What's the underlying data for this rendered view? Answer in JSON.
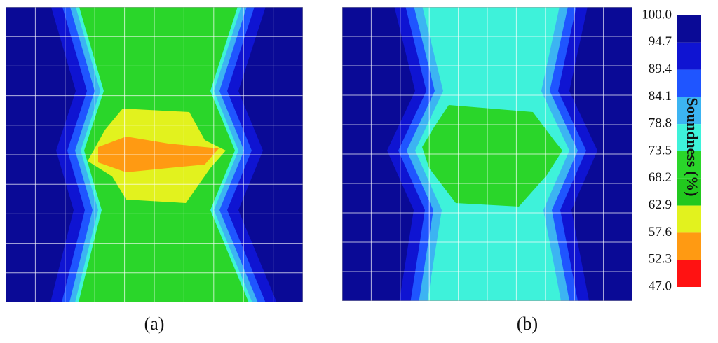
{
  "chart_data": {
    "type": "contour",
    "colorbar": {
      "label": "Soundness (%)",
      "ticks": [
        {
          "value": 100,
          "label": "100.0"
        },
        94.7,
        89.4,
        84.1,
        78.8,
        73.5,
        68.2,
        62.9,
        57.6,
        52.3,
        {
          "value": 47,
          "label": "47.0"
        }
      ],
      "colors": [
        "#0a0a96",
        "#0f14d2",
        "#1f55ff",
        "#3cb4f2",
        "#3ef2da",
        "#2ad62a",
        "#22c81e",
        "#e2f21e",
        "#ff9a12",
        "#ff1212"
      ]
    },
    "panels": [
      {
        "label": "(a)"
      },
      {
        "label": "(b)"
      }
    ]
  }
}
